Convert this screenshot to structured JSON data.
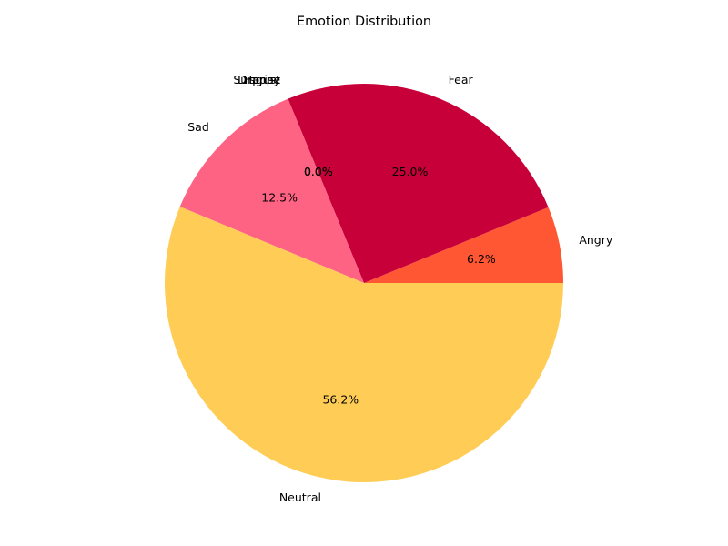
{
  "chart_data": {
    "type": "pie",
    "title": "Emotion Distribution",
    "categories": [
      "Angry",
      "Fear",
      "Happy",
      "Disgust",
      "Surprise",
      "Sad",
      "Neutral"
    ],
    "values": [
      6.2,
      25.0,
      0.0,
      0.0,
      0.0,
      12.5,
      56.2
    ],
    "pct_labels": [
      "6.2%",
      "25.0%",
      "0.0%",
      "0.0%",
      "0.0%",
      "12.5%",
      "56.2%"
    ],
    "colors": [
      "#FF5733",
      "#C70039",
      "#FFD700",
      "#8B4513",
      "#FF69B4",
      "#FF6384",
      "#FFCD56"
    ],
    "start_angle_deg": 0,
    "direction": "counterclockwise",
    "legend": "none"
  }
}
